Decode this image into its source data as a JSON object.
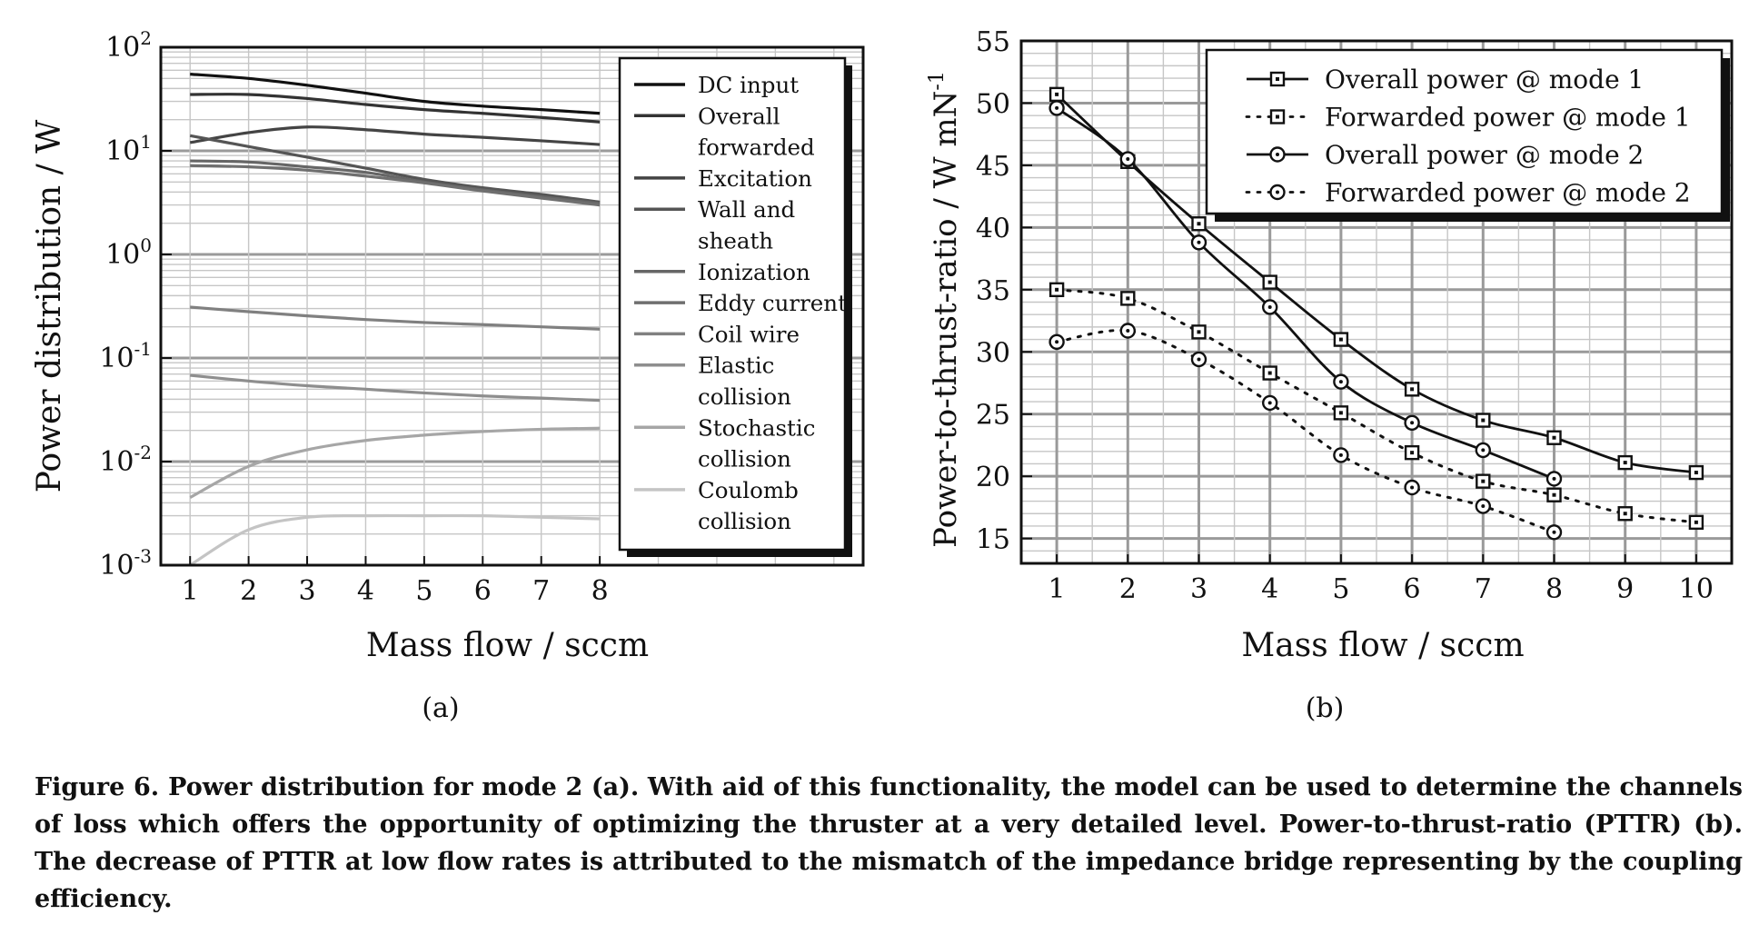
{
  "chart_data": [
    {
      "type": "line",
      "panel_label": "(a)",
      "xlabel": "Mass flow / sccm",
      "ylabel": "Power distribution / W",
      "x_scale": "linear",
      "y_scale": "log",
      "xlim": [
        0.5,
        12.5
      ],
      "ylim": [
        0.001,
        100
      ],
      "xticks": [
        "1",
        "2",
        "3",
        "4",
        "5",
        "6",
        "7",
        "8"
      ],
      "yticks": [
        {
          "value": 100,
          "base": "10",
          "exp": "2"
        },
        {
          "value": 10,
          "base": "10",
          "exp": "1"
        },
        {
          "value": 1,
          "base": "10",
          "exp": "0"
        },
        {
          "value": 0.1,
          "base": "10",
          "exp": "-1"
        },
        {
          "value": 0.01,
          "base": "10",
          "exp": "-2"
        },
        {
          "value": 0.001,
          "base": "10",
          "exp": "-3"
        }
      ],
      "grid": true,
      "legend_position": "right",
      "x": [
        1,
        2,
        3,
        4,
        5,
        6,
        7,
        8
      ],
      "series": [
        {
          "name": "DC input",
          "legend_lines": [
            "DC input"
          ],
          "color": "#111111",
          "values": [
            55,
            50,
            43,
            36,
            30,
            27,
            25,
            23
          ]
        },
        {
          "name": "Overall forwarded",
          "legend_lines": [
            "Overall",
            "forwarded"
          ],
          "color": "#333333",
          "values": [
            35,
            35,
            32,
            28,
            25,
            23,
            21,
            19
          ]
        },
        {
          "name": "Excitation",
          "legend_lines": [
            "Excitation"
          ],
          "color": "#444444",
          "values": [
            12,
            15,
            17,
            16,
            14.5,
            13.5,
            12.5,
            11.5
          ]
        },
        {
          "name": "Wall and sheath",
          "legend_lines": [
            "Wall and",
            "sheath"
          ],
          "color": "#555555",
          "values": [
            14,
            11,
            8.7,
            6.8,
            5.3,
            4.4,
            3.8,
            3.2
          ]
        },
        {
          "name": "Ionization",
          "legend_lines": [
            "Ionization"
          ],
          "color": "#666666",
          "values": [
            8,
            7.8,
            7,
            6.2,
            5,
            4.2,
            3.6,
            3.1
          ]
        },
        {
          "name": "Eddy current",
          "legend_lines": [
            "Eddy current"
          ],
          "color": "#6f6f6f",
          "values": [
            7.2,
            7,
            6.5,
            5.7,
            4.9,
            4.1,
            3.5,
            3.0
          ]
        },
        {
          "name": "Coil wire",
          "legend_lines": [
            "Coil wire"
          ],
          "color": "#808080",
          "values": [
            0.31,
            0.28,
            0.255,
            0.235,
            0.22,
            0.21,
            0.2,
            0.19
          ]
        },
        {
          "name": "Elastic collision",
          "legend_lines": [
            "Elastic",
            "collision"
          ],
          "color": "#8e8e8e",
          "values": [
            0.068,
            0.06,
            0.054,
            0.05,
            0.046,
            0.043,
            0.041,
            0.039
          ]
        },
        {
          "name": "Stochastic collision",
          "legend_lines": [
            "Stochastic",
            "collision"
          ],
          "color": "#a6a6a6",
          "values": [
            0.0045,
            0.009,
            0.013,
            0.016,
            0.018,
            0.0195,
            0.0205,
            0.021
          ]
        },
        {
          "name": "Coulomb collision",
          "legend_lines": [
            "Coulomb",
            "collision"
          ],
          "color": "#c4c4c4",
          "values": [
            0.001,
            0.0022,
            0.0029,
            0.003,
            0.003,
            0.003,
            0.0029,
            0.0028
          ]
        }
      ]
    },
    {
      "type": "line",
      "panel_label": "(b)",
      "xlabel": "Mass flow / sccm",
      "ylabel": "Power-to-thrust-ratio / W mN",
      "ylabel_sup": "-1",
      "x_scale": "linear",
      "y_scale": "linear",
      "xlim": [
        0.5,
        10.5
      ],
      "ylim": [
        13,
        55
      ],
      "xticks": [
        "1",
        "2",
        "3",
        "4",
        "5",
        "6",
        "7",
        "8",
        "9",
        "10"
      ],
      "yticks": [
        "15",
        "20",
        "25",
        "30",
        "35",
        "40",
        "45",
        "50",
        "55"
      ],
      "grid": true,
      "legend_position": "top-right",
      "series": [
        {
          "name": "Overall power @ mode 1",
          "marker": "square",
          "line": "solid",
          "x": [
            1,
            2,
            3,
            4,
            5,
            6,
            7,
            8,
            9,
            10
          ],
          "values": [
            50.7,
            45.3,
            40.3,
            35.6,
            31.0,
            27.0,
            24.5,
            23.1,
            21.1,
            20.3
          ]
        },
        {
          "name": "Forwarded power @ mode 1",
          "marker": "square",
          "line": "dotted",
          "x": [
            1,
            2,
            3,
            4,
            5,
            6,
            7,
            8,
            9,
            10
          ],
          "values": [
            35.0,
            34.3,
            31.6,
            28.3,
            25.1,
            21.9,
            19.6,
            18.5,
            17.0,
            16.3
          ]
        },
        {
          "name": "Overall power @ mode 2",
          "marker": "circle",
          "line": "solid",
          "x": [
            1,
            2,
            3,
            4,
            5,
            6,
            7,
            8
          ],
          "values": [
            49.6,
            45.5,
            38.8,
            33.6,
            27.6,
            24.3,
            22.1,
            19.8
          ]
        },
        {
          "name": "Forwarded power @ mode 2",
          "marker": "circle",
          "line": "dotted",
          "x": [
            1,
            2,
            3,
            4,
            5,
            6,
            7,
            8
          ],
          "values": [
            30.8,
            31.7,
            29.4,
            25.9,
            21.7,
            19.1,
            17.6,
            15.5
          ]
        }
      ]
    }
  ],
  "caption": {
    "label": "Figure 6.",
    "text": "Power distribution for mode 2 (a). With aid of this functionality, the model can be used to determine the channels of loss which offers the opportunity of optimizing the thruster at a very detailed level. Power-to-thrust-ratio (PTTR) (b). The decrease of PTTR at low flow rates is attributed to the mismatch of the impedance bridge representing by the coupling efficiency."
  }
}
